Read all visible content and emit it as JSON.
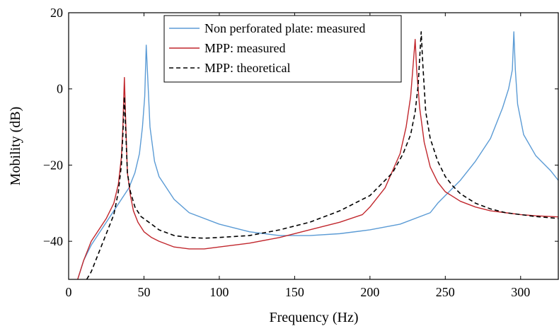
{
  "chart_data": {
    "type": "line",
    "title": "",
    "xlabel": "Frequency (Hz)",
    "ylabel": "Mobility (dB)",
    "xlim": [
      0,
      325
    ],
    "ylim": [
      -50,
      20
    ],
    "xticks": [
      0,
      50,
      100,
      150,
      200,
      250,
      300
    ],
    "yticks": [
      -40,
      -20,
      0,
      20
    ],
    "xtick_labels": [
      "0",
      "50",
      "100",
      "150",
      "200",
      "250",
      "300"
    ],
    "ytick_labels": [
      "−40",
      "−20",
      "0",
      "20"
    ],
    "grid": false,
    "legend_position": "top-center",
    "series": [
      {
        "name": "Non perforated plate: measured",
        "color": "#5b9bd5",
        "style": "solid",
        "x": [
          6,
          10,
          15,
          20,
          25,
          30,
          35,
          40,
          44,
          47,
          49,
          50.5,
          51.5,
          52.5,
          54,
          57,
          60,
          70,
          80,
          100,
          120,
          140,
          160,
          180,
          200,
          220,
          240,
          245,
          250,
          260,
          270,
          280,
          288,
          292,
          294.5,
          295.5,
          296.5,
          298,
          302,
          310,
          320,
          325
        ],
        "y": [
          -50,
          -45,
          -41,
          -38,
          -35,
          -32,
          -29,
          -26,
          -22,
          -17,
          -10,
          -2,
          11.5,
          3,
          -10,
          -19,
          -23,
          -29,
          -32.5,
          -35.5,
          -37.5,
          -38.5,
          -38.5,
          -38,
          -37,
          -35.5,
          -32.5,
          -30,
          -28,
          -24,
          -19,
          -13,
          -5,
          0,
          5,
          15,
          5,
          -4,
          -12,
          -17.5,
          -21.5,
          -24
        ]
      },
      {
        "name": "MPP: measured",
        "color": "#c1272d",
        "style": "solid",
        "x": [
          6,
          10,
          15,
          20,
          25,
          30,
          33,
          35,
          36,
          37,
          38,
          39,
          41,
          43,
          46,
          50,
          55,
          60,
          70,
          80,
          90,
          100,
          120,
          140,
          160,
          180,
          195,
          200,
          210,
          220,
          224,
          227,
          229,
          230,
          231,
          233,
          236,
          240,
          245,
          250,
          260,
          270,
          280,
          290,
          300,
          310,
          325
        ],
        "y": [
          -50,
          -45,
          -40,
          -37,
          -34,
          -30,
          -25,
          -18,
          -10,
          3,
          -10,
          -22,
          -28,
          -32,
          -35,
          -37.5,
          -39,
          -40,
          -41.5,
          -42,
          -42,
          -41.5,
          -40.5,
          -39,
          -37,
          -35,
          -33,
          -31,
          -26,
          -17,
          -10,
          -2,
          8,
          13,
          5,
          -5,
          -14,
          -20.5,
          -24.5,
          -27,
          -29.5,
          -31,
          -32,
          -32.5,
          -33,
          -33.3,
          -33.6
        ]
      },
      {
        "name": "MPP: theoretical",
        "color": "#000000",
        "style": "dashed",
        "x": [
          12,
          15,
          20,
          25,
          30,
          33,
          35,
          36,
          37,
          38,
          39,
          41,
          44,
          48,
          55,
          60,
          70,
          80,
          90,
          100,
          120,
          140,
          160,
          180,
          200,
          215,
          222,
          227,
          230,
          232,
          233,
          234,
          235,
          237,
          240,
          245,
          250,
          255,
          260,
          270,
          280,
          290,
          300,
          310,
          325
        ],
        "y": [
          -50,
          -48,
          -43,
          -38,
          -33,
          -27,
          -20,
          -12,
          -2,
          -12,
          -22,
          -27,
          -31,
          -33.5,
          -35.5,
          -37,
          -38.5,
          -39,
          -39.2,
          -39,
          -38.5,
          -37,
          -35,
          -32,
          -28,
          -22,
          -17,
          -12,
          -6,
          1,
          8,
          15,
          7,
          -6,
          -13,
          -19,
          -23,
          -25.5,
          -27.5,
          -30,
          -31.5,
          -32.5,
          -33,
          -33.5,
          -34
        ]
      }
    ]
  }
}
